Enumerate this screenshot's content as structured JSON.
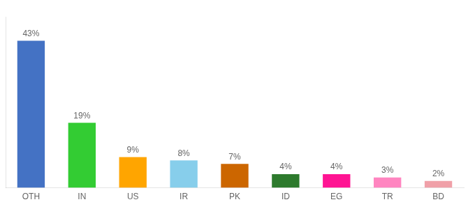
{
  "chart_data": {
    "type": "bar",
    "categories": [
      "OTH",
      "IN",
      "US",
      "IR",
      "PK",
      "ID",
      "EG",
      "TR",
      "BD"
    ],
    "values": [
      43,
      19,
      9,
      8,
      7,
      4,
      4,
      3,
      2
    ],
    "value_labels": [
      "43%",
      "19%",
      "9%",
      "8%",
      "7%",
      "4%",
      "4%",
      "3%",
      "2%"
    ],
    "colors": [
      "#4472C4",
      "#33CC33",
      "#FFA500",
      "#87CEEB",
      "#CC6600",
      "#2D7A2D",
      "#FF1493",
      "#FF85C0",
      "#F0A0A8"
    ],
    "ylim": [
      0,
      50
    ],
    "grid": false,
    "data_labels": true,
    "tick_labels": "x"
  }
}
